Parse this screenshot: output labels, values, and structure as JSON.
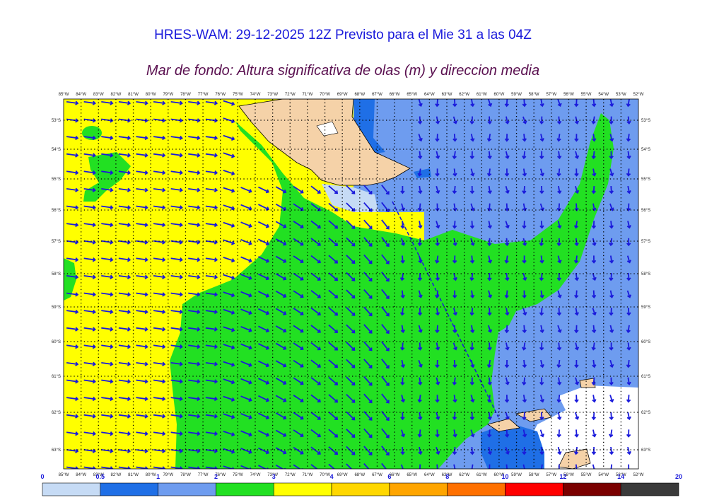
{
  "header": {
    "title": "HRES-WAM: 29-12-2025 12Z Previsto para el Mie 31 a las 04Z",
    "subtitle": "Mar de fondo: Altura significativa de olas (m) y direccion media"
  },
  "map": {
    "longitude_labels": [
      "85°W",
      "84°W",
      "83°W",
      "82°W",
      "81°W",
      "80°W",
      "79°W",
      "78°W",
      "77°W",
      "76°W",
      "75°W",
      "74°W",
      "73°W",
      "72°W",
      "71°W",
      "70°W",
      "69°W",
      "68°W",
      "67°W",
      "66°W",
      "65°W",
      "64°W",
      "63°W",
      "62°W",
      "61°W",
      "60°W",
      "59°W",
      "58°W",
      "57°W",
      "56°W",
      "55°W",
      "54°W",
      "53°W",
      "52°W"
    ],
    "latitude_labels": [
      "53°S",
      "54°S",
      "55°S",
      "56°S",
      "57°S",
      "58°S",
      "59°S",
      "60°S",
      "61°S",
      "62°S",
      "63°S"
    ]
  },
  "colorbar": {
    "ticks": [
      0,
      0.5,
      1,
      2,
      3,
      4,
      6,
      8,
      10,
      12,
      14,
      20
    ],
    "colors": [
      "#c6dbf5",
      "#1f6fe6",
      "#6e9cef",
      "#22e022",
      "#ffff00",
      "#ffd700",
      "#ffa500",
      "#ff7000",
      "#ff0000",
      "#7a0000",
      "#3a3a3a"
    ]
  }
}
